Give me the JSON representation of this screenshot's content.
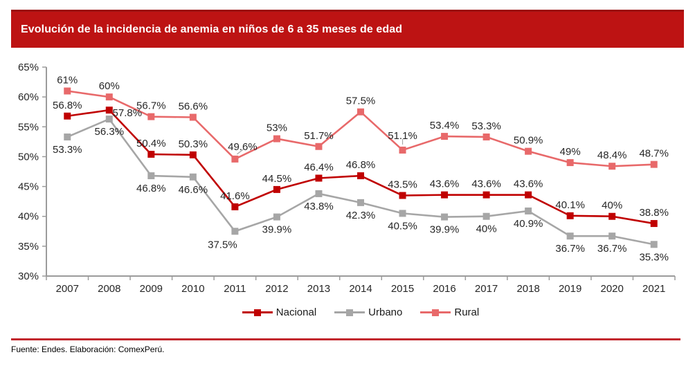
{
  "title": "Evolución de la incidencia de anemia en niños de 6 a 35 meses de edad",
  "footer": {
    "source": "Fuente: Endes. Elaboración: ComexPerú."
  },
  "colors": {
    "title_bar": "#bd1313",
    "title_bar_top_edge": "#9c1010",
    "footer_rule": "#c2272d",
    "axis": "#9b9b9b",
    "label_text": "#262626",
    "leader_line": "#a6a6a6"
  },
  "chart_data": {
    "type": "line",
    "x": [
      2007,
      2008,
      2009,
      2010,
      2011,
      2012,
      2013,
      2014,
      2015,
      2016,
      2017,
      2018,
      2019,
      2020,
      2021
    ],
    "ylim": [
      30,
      65
    ],
    "ytick_step": 5,
    "ytick_suffix": "%",
    "grid": false,
    "legend_position": "bottom",
    "marker": "square",
    "series": [
      {
        "name": "Urbano",
        "color": "#a6a6a6",
        "label_placement": "below",
        "values": [
          53.3,
          56.3,
          46.8,
          46.6,
          37.5,
          39.9,
          43.8,
          42.3,
          40.5,
          39.9,
          40,
          40.9,
          36.7,
          36.7,
          35.3
        ],
        "label_overrides": {
          "4": {
            "dx": -18,
            "dy": 19
          }
        }
      },
      {
        "name": "Rural",
        "color": "#e8696a",
        "label_placement": "above",
        "values": [
          61,
          60,
          56.7,
          56.6,
          49.6,
          53,
          51.7,
          57.5,
          51.1,
          53.4,
          53.3,
          50.9,
          49,
          48.4,
          48.7
        ],
        "label_overrides": {
          "4": {
            "dx": 11,
            "dy": -18,
            "leader": [
              3,
              -7,
              12,
              -14
            ]
          },
          "8": {
            "dx": 0,
            "dy": -21,
            "leader": [
              0,
              -8,
              0,
              -16
            ]
          }
        }
      },
      {
        "name": "Nacional",
        "color": "#c00000",
        "label_placement": "above",
        "values": [
          56.8,
          57.8,
          50.4,
          50.3,
          41.6,
          44.5,
          46.4,
          46.8,
          43.5,
          43.6,
          43.6,
          43.6,
          40.1,
          40,
          38.8
        ],
        "label_overrides": {
          "1": {
            "dx": 26,
            "dy": 4
          }
        }
      }
    ],
    "legend_order": [
      "Nacional",
      "Urbano",
      "Rural"
    ]
  }
}
